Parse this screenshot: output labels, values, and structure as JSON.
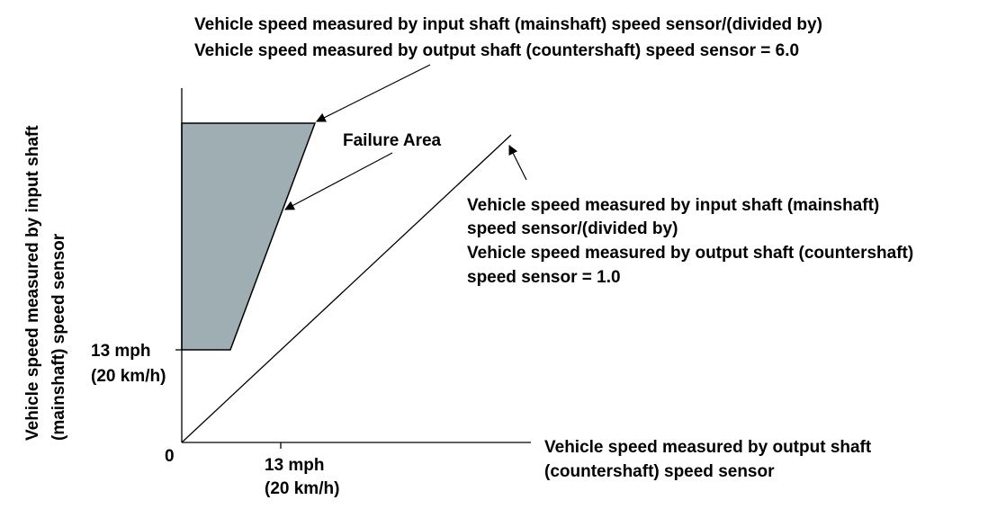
{
  "diagram": {
    "ratio_6_label": {
      "line1": "Vehicle speed measured by input shaft (mainshaft) speed sensor/(divided by)",
      "line2": "Vehicle speed measured by output shaft (countershaft) speed sensor = 6.0"
    },
    "failure_area_label": "Failure Area",
    "ratio_1_label": {
      "line1": "Vehicle speed measured by input shaft (mainshaft)",
      "line2": "speed sensor/(divided by)",
      "line3": "Vehicle speed measured by output shaft (countershaft)",
      "line4": "speed sensor = 1.0"
    },
    "y_axis_label": {
      "line1": "Vehicle speed measured by input shaft",
      "line2": "(mainshaft) speed sensor"
    },
    "x_axis_label": {
      "line1": "Vehicle speed measured by output shaft",
      "line2": "(countershaft) speed sensor"
    },
    "y_threshold": {
      "line1": "13 mph",
      "line2": "(20 km/h)"
    },
    "x_threshold": {
      "line1": "13 mph",
      "line2": "(20 km/h)"
    },
    "origin_label": "0",
    "colors": {
      "failure_fill": "#9eaeb3",
      "line": "#000000",
      "background": "#ffffff"
    }
  }
}
